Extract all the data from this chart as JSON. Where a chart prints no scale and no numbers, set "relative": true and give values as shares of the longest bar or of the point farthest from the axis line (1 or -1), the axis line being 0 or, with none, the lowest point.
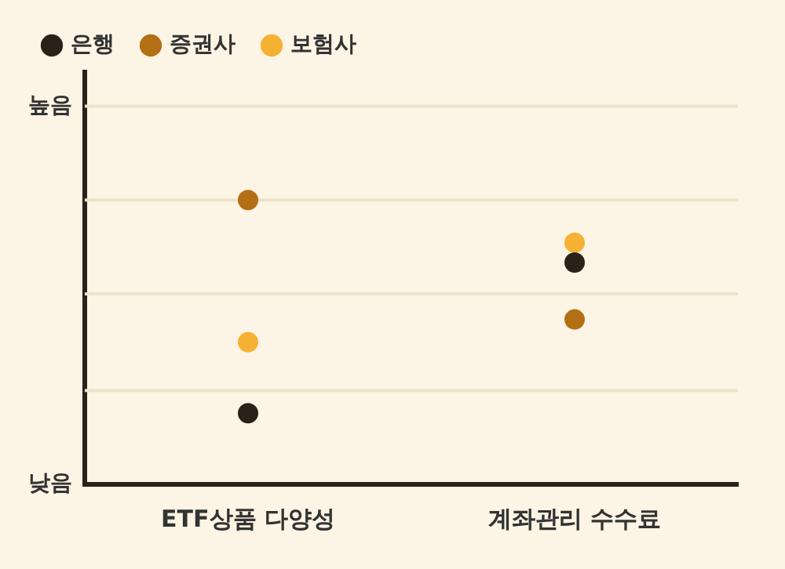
{
  "chart_data": {
    "type": "scatter",
    "relative": true,
    "categories": [
      "ETF상품 다양성",
      "계좌관리 수수료"
    ],
    "series": [
      {
        "name": "은행",
        "color": "#2a2119",
        "values": [
          0.25,
          0.78
        ]
      },
      {
        "name": "증권사",
        "color": "#b26f14",
        "values": [
          1,
          0.58
        ]
      },
      {
        "name": "보험사",
        "color": "#f5b133",
        "values": [
          0.5,
          0.85
        ]
      }
    ],
    "annotations": [
      "높음",
      "낮음"
    ],
    "ref_lines": [
      {
        "axis": "y",
        "value": 0.33,
        "color": "#ede2cc"
      },
      {
        "axis": "y",
        "value": 0.67,
        "color": "#ede2cc"
      },
      {
        "axis": "y",
        "value": 1,
        "color": "#ede2cc"
      },
      {
        "axis": "y",
        "value": 1.33,
        "color": "#ede2cc"
      }
    ],
    "legend": "top left",
    "marker": "circle"
  }
}
